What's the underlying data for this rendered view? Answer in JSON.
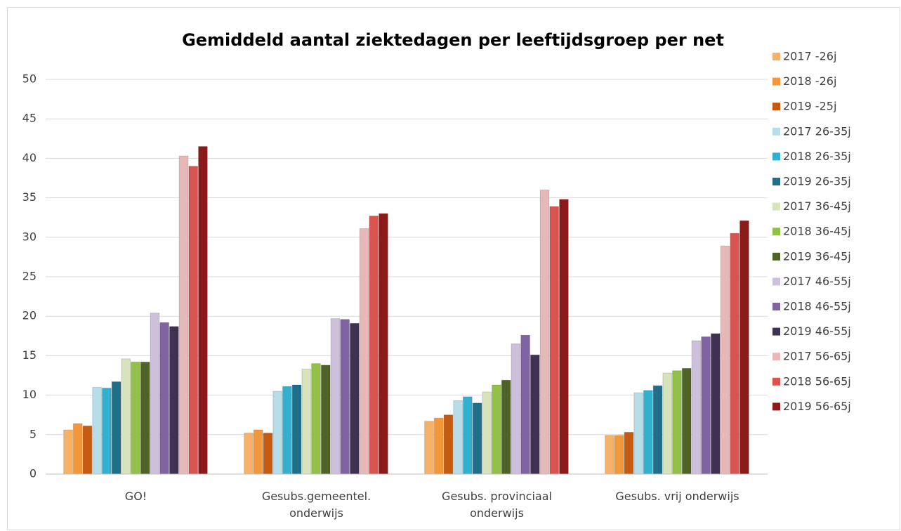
{
  "chart_data": {
    "type": "bar",
    "title": "Gemiddeld aantal ziektedagen per leeftijdsgroep per net",
    "categories": [
      "GO!",
      "Gesubs.gemeentel. onderwijs",
      "Gesubs. provinciaal onderwijs",
      "Gesubs. vrij onderwijs"
    ],
    "ylim": [
      0,
      50
    ],
    "yticks": [
      0,
      5,
      10,
      15,
      20,
      25,
      30,
      35,
      40,
      45,
      50
    ],
    "grid": true,
    "legend": "right",
    "series": [
      {
        "name": "2017 -26j",
        "color": "#f7b26a",
        "values": [
          5.6,
          5.2,
          6.7,
          4.9
        ]
      },
      {
        "name": "2018 -26j",
        "color": "#f3983a",
        "values": [
          6.4,
          5.6,
          7.1,
          4.9
        ]
      },
      {
        "name": "2019 -25j",
        "color": "#c55a11",
        "values": [
          6.1,
          5.2,
          7.5,
          5.3
        ]
      },
      {
        "name": "2017 26-35j",
        "color": "#b7dde8",
        "values": [
          11.0,
          10.5,
          9.3,
          10.3
        ]
      },
      {
        "name": "2018 26-35j",
        "color": "#31b0d0",
        "values": [
          10.9,
          11.1,
          9.8,
          10.6
        ]
      },
      {
        "name": "2019 26-35j",
        "color": "#1f6f8b",
        "values": [
          11.7,
          11.3,
          9.0,
          11.2
        ]
      },
      {
        "name": "2017 36-45j",
        "color": "#d6e3bc",
        "values": [
          14.6,
          13.3,
          10.4,
          12.8
        ]
      },
      {
        "name": "2018 36-45j",
        "color": "#92c048",
        "values": [
          14.2,
          14.0,
          11.3,
          13.1
        ]
      },
      {
        "name": "2019 36-45j",
        "color": "#4f6228",
        "values": [
          14.2,
          13.8,
          11.9,
          13.4
        ]
      },
      {
        "name": "2017 46-55j",
        "color": "#ccc0da",
        "values": [
          20.4,
          19.7,
          16.5,
          16.9
        ]
      },
      {
        "name": "2018 46-55j",
        "color": "#8064a2",
        "values": [
          19.2,
          19.6,
          17.6,
          17.4
        ]
      },
      {
        "name": "2019 46-55j",
        "color": "#3f3151",
        "values": [
          18.7,
          19.1,
          15.1,
          17.8
        ]
      },
      {
        "name": "2017 56-65j",
        "color": "#e6b9b8",
        "values": [
          40.3,
          31.1,
          36.0,
          28.9
        ]
      },
      {
        "name": "2018 56-65j",
        "color": "#d9534f",
        "values": [
          39.0,
          32.7,
          33.9,
          30.5
        ]
      },
      {
        "name": "2019 56-65j",
        "color": "#8b1a1a",
        "values": [
          41.5,
          33.0,
          34.8,
          32.1
        ]
      }
    ]
  }
}
